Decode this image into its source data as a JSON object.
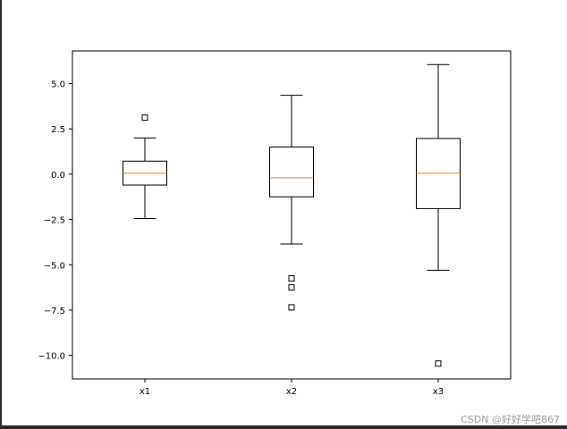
{
  "chart_data": {
    "type": "box",
    "title": "",
    "xlabel": "",
    "ylabel": "",
    "ylim": [
      -11.3,
      6.8
    ],
    "yticks": [
      5.0,
      2.5,
      0.0,
      -2.5,
      -5.0,
      -7.5,
      -10.0
    ],
    "ytick_labels": [
      "5.0",
      "2.5",
      "0.0",
      "−2.5",
      "−5.0",
      "−7.5",
      "−10.0"
    ],
    "categories": [
      "x1",
      "x2",
      "x3"
    ],
    "boxes": [
      {
        "label": "x1",
        "whisker_low": -2.45,
        "q1": -0.6,
        "median": 0.05,
        "q3": 0.72,
        "whisker_high": 2.0,
        "fliers": [
          3.12
        ]
      },
      {
        "label": "x2",
        "whisker_low": -3.85,
        "q1": -1.25,
        "median": -0.2,
        "q3": 1.5,
        "whisker_high": 4.35,
        "fliers": [
          -5.75,
          -6.25,
          -7.35
        ]
      },
      {
        "label": "x3",
        "whisker_low": -5.3,
        "q1": -1.9,
        "median": 0.05,
        "q3": 1.97,
        "whisker_high": 6.05,
        "fliers": [
          -10.45
        ]
      }
    ],
    "colors": {
      "box": "#000000",
      "median": "#ff7f0e",
      "flier": "#000000",
      "axes": "#000000"
    },
    "grid": false,
    "legend": "none"
  },
  "watermark": "CSDN @好好学吧867"
}
